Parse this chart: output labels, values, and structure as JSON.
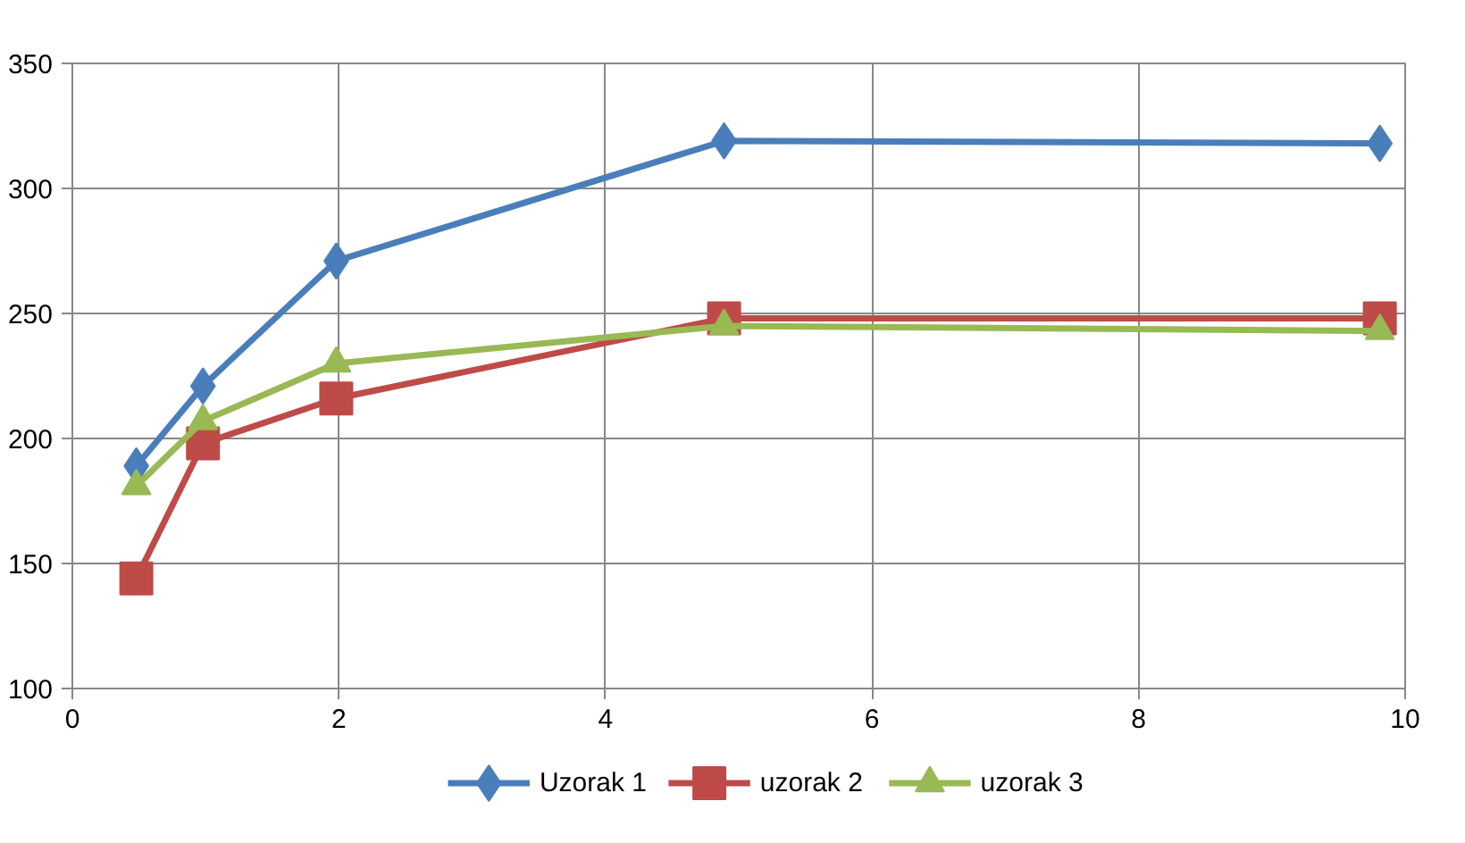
{
  "chart_data": {
    "type": "line",
    "xlim": [
      0,
      10
    ],
    "xticks": [
      0,
      2,
      4,
      6,
      8,
      10
    ],
    "ylim": [
      100,
      350
    ],
    "yticks": [
      100,
      150,
      200,
      250,
      300,
      350
    ],
    "grid": true,
    "legend": "bottom",
    "series": [
      {
        "name": "Uzorak 1",
        "color": "#4a7ebb",
        "marker": "diamond",
        "x": [
          0.48,
          0.98,
          1.98,
          4.89,
          9.81
        ],
        "values": [
          189,
          221,
          271,
          319,
          318
        ]
      },
      {
        "name": "uzorak 2",
        "color": "#be4b48",
        "marker": "square",
        "x": [
          0.48,
          0.98,
          1.98,
          4.89,
          9.81
        ],
        "values": [
          144,
          198,
          216,
          248,
          248
        ]
      },
      {
        "name": "uzorak 3",
        "color": "#98b954",
        "marker": "triangle",
        "x": [
          0.48,
          0.98,
          1.98,
          4.89,
          9.81
        ],
        "values": [
          181,
          207,
          230,
          245,
          243
        ]
      }
    ]
  }
}
